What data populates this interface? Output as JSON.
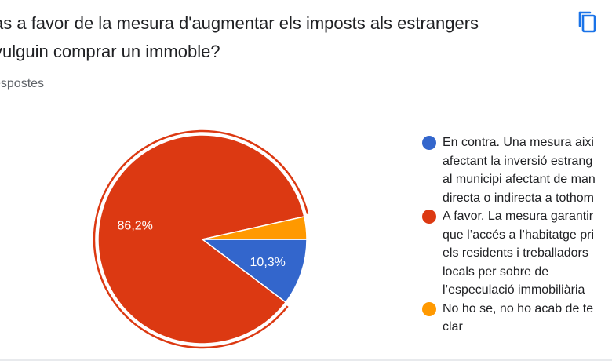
{
  "header": {
    "title_line1": "às a favor de la mesura d'augmentar els imposts als estrangers",
    "title_line2": " vulguin comprar un immoble?",
    "subtitle": "espostes",
    "copy_icon": "copy-icon"
  },
  "chart_data": {
    "type": "pie",
    "slices": [
      {
        "label": "En contra. Una mesura aixi\nafectant la inversió estrang\nal municipi afectant de man\ndirecta o indirecta a tothom",
        "value": 10.3,
        "display": "10,3%",
        "color": "#3366cc"
      },
      {
        "label": "A favor. La mesura garantir\nque l’accés a l’habitatge pri\nels residents i treballadors\nlocals per sobre de\nl’especulació immobiliària",
        "value": 86.2,
        "display": "86,2%",
        "color": "#dc3912",
        "exploded": true
      },
      {
        "label": "No ho se, no ho acab de te\nclar",
        "value": 3.5,
        "display": "",
        "color": "#ff9900"
      }
    ],
    "legend_position": "right"
  }
}
